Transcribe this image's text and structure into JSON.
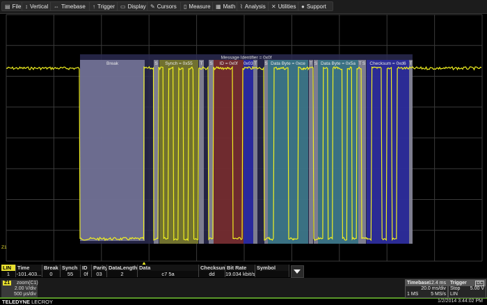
{
  "menu": [
    {
      "label": "File",
      "icon": "file-icon"
    },
    {
      "label": "Vertical",
      "icon": "vertical-icon"
    },
    {
      "label": "Timebase",
      "icon": "timebase-icon"
    },
    {
      "label": "Trigger",
      "icon": "trigger-icon"
    },
    {
      "label": "Display",
      "icon": "display-icon"
    },
    {
      "label": "Cursors",
      "icon": "cursors-icon"
    },
    {
      "label": "Measure",
      "icon": "measure-icon"
    },
    {
      "label": "Math",
      "icon": "math-icon"
    },
    {
      "label": "Analysis",
      "icon": "analysis-icon"
    },
    {
      "label": "Utilities",
      "icon": "utilities-icon"
    },
    {
      "label": "Support",
      "icon": "support-icon"
    }
  ],
  "decode": {
    "message_label": "Message Identifier = 0x0f",
    "segments": [
      {
        "label": "Break",
        "kind": "break"
      },
      {
        "label": "S",
        "kind": "s"
      },
      {
        "label": "Synch = 0x55",
        "kind": "synch",
        "byte": "55"
      },
      {
        "label": "T",
        "kind": "t"
      },
      {
        "label": "S",
        "kind": "s"
      },
      {
        "label": "ID = 0x0f",
        "kind": "id",
        "byte": "cf"
      },
      {
        "label": "0x03",
        "kind": "parity"
      },
      {
        "label": "T",
        "kind": "t"
      },
      {
        "label": "S",
        "kind": "s"
      },
      {
        "label": "Data Byte = 0xce",
        "kind": "data",
        "byte": "ce"
      },
      {
        "label": "T",
        "kind": "t"
      },
      {
        "label": "S",
        "kind": "s"
      },
      {
        "label": "Data Byte = 0x5a",
        "kind": "data",
        "byte": "5a"
      },
      {
        "label": "T",
        "kind": "t"
      },
      {
        "label": "S",
        "kind": "s"
      },
      {
        "label": "Checksum = 0xd6",
        "kind": "checksum",
        "byte": "d6"
      },
      {
        "label": "T",
        "kind": "t"
      }
    ],
    "colors": {
      "break": "#76769a",
      "s": "#8a8a9a",
      "t": "#8a8a9a",
      "synch": "#7c7c2c",
      "id": "#7a2c2c",
      "parity": "#2a2aa8",
      "data": "#3e7c8c",
      "checksum": "#2c2ca0",
      "trace": "#f0f020",
      "frame": "#2a2a50"
    }
  },
  "marker_label": "Z1",
  "table": {
    "headers": [
      "LIN",
      "Time",
      "Break",
      "Synch",
      "ID",
      "Parity",
      "DataLength",
      "Data",
      "Checksum",
      "Bit Rate",
      "Symbol"
    ],
    "row": [
      "1",
      "-101.403...",
      "0",
      "55",
      "0f",
      "03",
      "2",
      "c7 5a",
      "dd",
      "19.034 kbit/s",
      ""
    ]
  },
  "z1": {
    "tag": "Z1",
    "source": "zoom(C1)",
    "vdiv": "2.00 V/div",
    "tdiv": "500 µs/div"
  },
  "timebase": {
    "title": "Timebase",
    "delay": "12.4 ms",
    "tdiv": "20.0 ms/div",
    "points": "1 MS",
    "rate": "5 MS/s"
  },
  "trigger": {
    "title": "Trigger",
    "coupling": "DC",
    "mode": "Stop",
    "level": "5.00 V",
    "type": "LIN"
  },
  "brand": {
    "bold": "TELEDYNE",
    "light": "LECROY"
  },
  "datetime": "1/2/2014 3:44:02 PM"
}
